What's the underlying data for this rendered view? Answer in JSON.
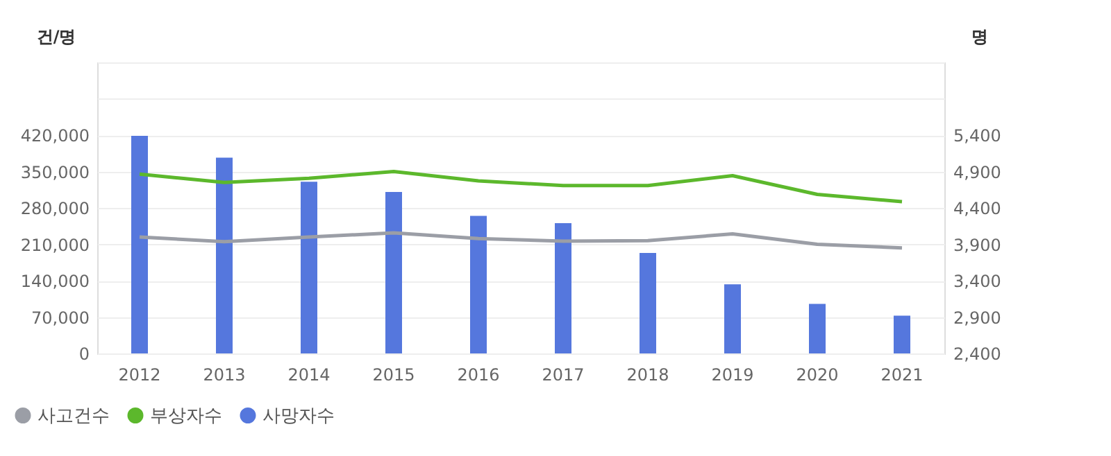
{
  "chart_data": {
    "type": "line",
    "ylabel": "건/명",
    "y2label": "명",
    "categories": [
      "2012",
      "2013",
      "2014",
      "2015",
      "2016",
      "2017",
      "2018",
      "2019",
      "2020",
      "2021"
    ],
    "series": [
      {
        "name": "사고건수",
        "color": "#9b9ea6",
        "values": [
          224000,
          215000,
          224000,
          232000,
          221000,
          216000,
          217000,
          230000,
          210000,
          203000
        ]
      },
      {
        "name": "부상자수",
        "color": "#5cb82c",
        "values": [
          345000,
          329000,
          337000,
          350000,
          332000,
          323000,
          323000,
          342000,
          306000,
          292000
        ]
      },
      {
        "name": "사망자수",
        "type": "bar",
        "axis": "y2",
        "color": "#5577dd",
        "values": [
          5390,
          5090,
          4760,
          4620,
          4290,
          4190,
          3780,
          3350,
          3080,
          2920
        ]
      }
    ],
    "ylim": [
      0,
      560000
    ],
    "yticks": [
      0,
      {
        "value": 70000,
        "label": "70,000"
      },
      {
        "value": 140000,
        "label": "140,000"
      },
      {
        "value": 210000,
        "label": "210,000"
      },
      {
        "value": 280000,
        "label": "280,000"
      },
      {
        "value": 350000,
        "label": "350,000"
      },
      {
        "value": 420000,
        "label": "420,000"
      },
      {
        "value": 490000,
        "label": null
      },
      {
        "value": 560000,
        "label": null
      }
    ],
    "y2lim": [
      2400,
      6400
    ],
    "y2ticks": [
      {
        "value": 2400,
        "label": "2,400"
      },
      {
        "value": 2900,
        "label": "2,900"
      },
      {
        "value": 3400,
        "label": "3,400"
      },
      {
        "value": 3900,
        "label": "3,900"
      },
      {
        "value": 4400,
        "label": "4,400"
      },
      {
        "value": 4900,
        "label": "4,900"
      },
      {
        "value": 5400,
        "label": "5,400"
      }
    ],
    "grid": "y",
    "legend": "bottom left"
  }
}
